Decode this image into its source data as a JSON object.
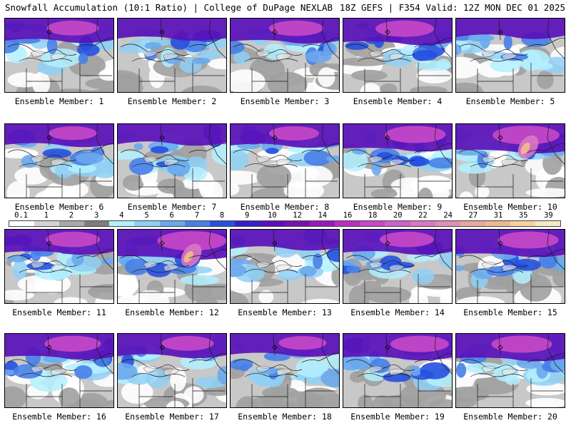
{
  "header": {
    "title_left": "Snowfall Accumulation (10:1 Ratio) | College of DuPage NEXLAB",
    "title_right": "18Z GEFS | F354 Valid: 12Z MON DEC 01 2025"
  },
  "members": [
    {
      "label": "Ensemble Member: 1",
      "intensity": 0.55,
      "bias": 0.0
    },
    {
      "label": "Ensemble Member: 2",
      "intensity": 0.4,
      "bias": 0.3
    },
    {
      "label": "Ensemble Member: 3",
      "intensity": 0.6,
      "bias": -0.1
    },
    {
      "label": "Ensemble Member: 4",
      "intensity": 0.7,
      "bias": -0.3
    },
    {
      "label": "Ensemble Member: 5",
      "intensity": 0.25,
      "bias": 0.2
    },
    {
      "label": "Ensemble Member: 6",
      "intensity": 0.45,
      "bias": 0.0
    },
    {
      "label": "Ensemble Member: 7",
      "intensity": 0.35,
      "bias": 0.1
    },
    {
      "label": "Ensemble Member: 8",
      "intensity": 0.5,
      "bias": -0.2
    },
    {
      "label": "Ensemble Member: 9",
      "intensity": 0.75,
      "bias": 0.2
    },
    {
      "label": "Ensemble Member: 10",
      "intensity": 0.9,
      "bias": 0.1
    },
    {
      "label": "Ensemble Member: 11",
      "intensity": 0.6,
      "bias": 0.0
    },
    {
      "label": "Ensemble Member: 12",
      "intensity": 0.95,
      "bias": 0.3
    },
    {
      "label": "Ensemble Member: 13",
      "intensity": 0.3,
      "bias": -0.1
    },
    {
      "label": "Ensemble Member: 14",
      "intensity": 0.6,
      "bias": -0.2
    },
    {
      "label": "Ensemble Member: 15",
      "intensity": 0.75,
      "bias": 0.2
    },
    {
      "label": "Ensemble Member: 16",
      "intensity": 0.65,
      "bias": 0.0
    },
    {
      "label": "Ensemble Member: 17",
      "intensity": 0.55,
      "bias": 0.1
    },
    {
      "label": "Ensemble Member: 18",
      "intensity": 0.45,
      "bias": 0.2
    },
    {
      "label": "Ensemble Member: 19",
      "intensity": 0.7,
      "bias": 0.4
    },
    {
      "label": "Ensemble Member: 20",
      "intensity": 0.75,
      "bias": -0.1
    }
  ],
  "colorbar": {
    "labels": [
      "0.1",
      "1",
      "2",
      "3",
      "4",
      "5",
      "6",
      "7",
      "8",
      "9",
      "10",
      "12",
      "14",
      "16",
      "18",
      "20",
      "22",
      "24",
      "27",
      "31",
      "35",
      "39"
    ],
    "colors": [
      "#ffffff",
      "#d3d3d3",
      "#a9a9a9",
      "#7e7e7e",
      "#b3f0ff",
      "#8fd0f5",
      "#6aa8ec",
      "#4780e8",
      "#2650e0",
      "#3520c8",
      "#5a10b8",
      "#7a10b0",
      "#9a18b8",
      "#b830c0",
      "#c848c8",
      "#d060c8",
      "#d878c0",
      "#e090b0",
      "#e8a8a0",
      "#f0b890",
      "#f8d0a0",
      "#f8e8c8"
    ]
  }
}
